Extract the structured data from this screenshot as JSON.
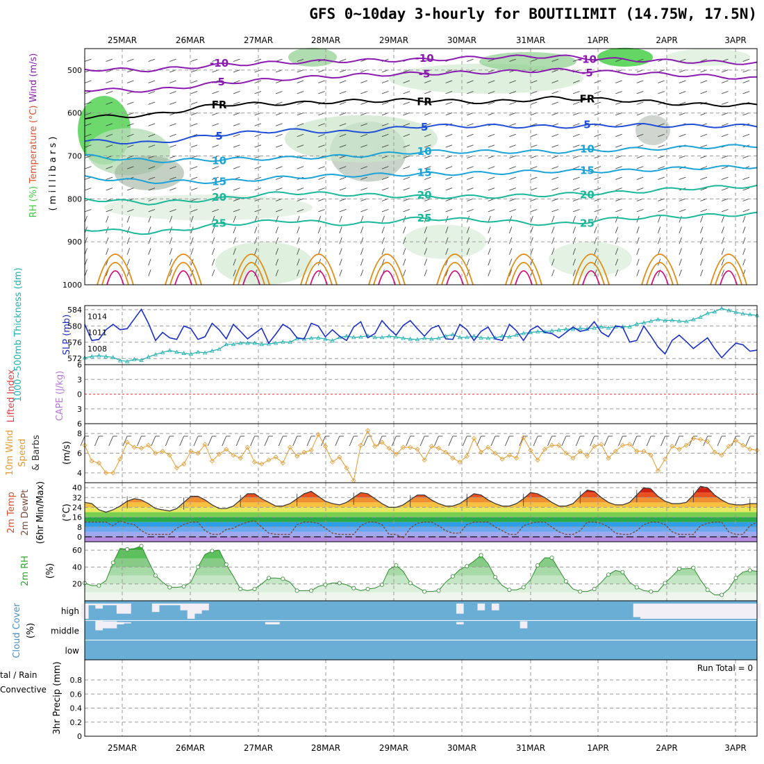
{
  "title": "GFS 0~10day 3-hourly for BOUTILIMIT (14.75W, 17.5N)",
  "colors": {
    "purple": "#8a1ab0",
    "black": "#000000",
    "blue": "#1f4fd8",
    "cyan": "#1aa3d9",
    "teal": "#19b89a",
    "orange": "#e08a10",
    "magenta": "#d0107a",
    "slp": "#1a2fc8",
    "thickness": "#1fb0b0",
    "wind10m": "#e69a2e",
    "rh_fill": "#3ccc3c",
    "cloud": "#6aaed6",
    "cloud_clear": "#f2eef5"
  },
  "chart_data": [
    {
      "id": "upper_air",
      "type": "contour",
      "ylabel_parts": [
        "RH (%)",
        "Temperature (°C)",
        "Wind (m/s)"
      ],
      "ylabel_unit": "( m i l l i b a r s )",
      "pressure_ticks": [
        "500",
        "600",
        "700",
        "800",
        "900",
        "1000"
      ],
      "ylim": [
        450,
        1000
      ],
      "dates": [
        "25MAR",
        "26MAR",
        "27MAR",
        "28MAR",
        "29MAR",
        "30MAR",
        "31MAR",
        "1APR",
        "2APR",
        "3APR"
      ],
      "isotherms": [
        {
          "label": "-10",
          "color_key": "purple",
          "levels": [
            498,
            500,
            488,
            482,
            478,
            476,
            470,
            468,
            476,
            480,
            484
          ]
        },
        {
          "label": "-5",
          "color_key": "purple",
          "levels": [
            545,
            548,
            530,
            520,
            512,
            508,
            505,
            500,
            506,
            512,
            520
          ]
        },
        {
          "label": "FR",
          "color_key": "black",
          "levels": [
            610,
            605,
            580,
            578,
            572,
            570,
            575,
            565,
            570,
            580,
            582
          ]
        },
        {
          "label": "5",
          "color_key": "blue",
          "levels": [
            665,
            670,
            650,
            640,
            645,
            630,
            630,
            632,
            628,
            630,
            630
          ]
        },
        {
          "label": "10",
          "color_key": "cyan",
          "levels": [
            700,
            712,
            708,
            705,
            700,
            690,
            690,
            690,
            685,
            680,
            676
          ]
        },
        {
          "label": "15",
          "color_key": "cyan",
          "levels": [
            750,
            760,
            760,
            750,
            745,
            742,
            740,
            735,
            735,
            728,
            725
          ]
        },
        {
          "label": "20",
          "color_key": "teal",
          "levels": [
            800,
            810,
            800,
            785,
            790,
            795,
            795,
            790,
            785,
            775,
            770
          ]
        },
        {
          "label": "25",
          "color_key": "teal",
          "levels": [
            870,
            880,
            860,
            850,
            860,
            845,
            850,
            860,
            845,
            840,
            835
          ]
        }
      ]
    },
    {
      "id": "slp_thickness",
      "type": "line",
      "ylabel": "1000~500mb Thickness (dm)",
      "ylabel2": "SLP (mb)",
      "left_ticks": [
        "584",
        "580",
        "576",
        "572"
      ],
      "right_ticks": [
        "1014",
        "1011",
        "1008"
      ],
      "series": [
        {
          "name": "SLP (mb)",
          "color_key": "slp",
          "values": [
            1012.5,
            1009.5,
            1009.7,
            1011.5,
            1012.5,
            1011.5,
            1011.7,
            1013.5,
            1015.3,
            1012.7,
            1009.5,
            1011.0,
            1010.0,
            1009.7,
            1012.2,
            1011.7,
            1009.7,
            1010.2,
            1012.7,
            1011.5,
            1009.8,
            1012.5,
            1011.2,
            1009.8,
            1010.8,
            1011.8,
            1009.0,
            1010.7,
            1012.5,
            1011.7,
            1010.0,
            1009.8,
            1012.7,
            1012.2,
            1010.2,
            1011.5,
            1010.3,
            1009.5,
            1012.0,
            1013.0,
            1010.0,
            1010.8,
            1013.2,
            1011.7,
            1010.5,
            1012.3,
            1013.2,
            1011.7,
            1010.3,
            1011.8,
            1012.3,
            1009.8,
            1009.7,
            1012.5,
            1011.5,
            1009.5,
            1011.2,
            1012.0,
            1009.8,
            1009.5,
            1012.5,
            1011.3,
            1009.5,
            1011.5,
            1012.2,
            1011.0,
            1010.8,
            1010.0,
            1011.0,
            1012.0,
            1011.2,
            1011.5,
            1013.0,
            1011.0,
            1010.2,
            1012.2,
            1012.0,
            1009.2,
            1009.5,
            1012.2,
            1010.3,
            1008.3,
            1007.0,
            1009.5,
            1010.5,
            1009.3,
            1008.0,
            1009.0,
            1010.0,
            1008.0,
            1006.3,
            1007.7,
            1009.0,
            1008.7,
            1007.5,
            1007.7
          ]
        },
        {
          "name": "1000~500mb Thickness (dm)",
          "color_key": "thickness",
          "values": [
            572.2,
            572.5,
            572.7,
            572.5,
            572.3,
            571.5,
            571.3,
            571.8,
            571.6,
            572.4,
            573.0,
            573.5,
            574.0,
            573.6,
            573.3,
            573.1,
            573.6,
            573.4,
            573.9,
            574.3,
            575.5,
            575.5,
            575.8,
            575.8,
            575.8,
            575.5,
            575.6,
            575.8,
            576.1,
            576.0,
            576.9,
            576.8,
            577.0,
            577.1,
            576.8,
            576.4,
            577.2,
            577.5,
            577.2,
            577.3,
            577.6,
            577.2,
            577.2,
            577.5,
            577.3,
            577.0,
            576.8,
            576.7,
            577.0,
            576.8,
            577.0,
            577.5,
            577.9,
            577.2,
            577.2,
            577.5,
            577.1,
            577.0,
            577.1,
            577.5,
            577.3,
            577.8,
            578.2,
            578.4,
            578.6,
            578.6,
            578.8,
            579.0,
            579.2,
            579.2,
            579.4,
            579.3,
            579.5,
            579.8,
            579.5,
            579.8,
            579.8,
            579.8,
            580.5,
            580.8,
            581.2,
            581.6,
            581.3,
            581.4,
            581.2,
            581.1,
            581.6,
            582.2,
            583.1,
            583.5,
            584.3,
            583.8,
            583.4,
            583.0,
            582.8,
            582.6
          ]
        }
      ]
    },
    {
      "id": "cape_li",
      "type": "line",
      "ylabel": "Lifted Index",
      "ylabel2": "CAPE (J/kg)",
      "left_ticks": [
        "6",
        "3",
        "0",
        "3",
        "6"
      ],
      "series": [
        {
          "name": "Lifted Index zero line",
          "values": [
            0
          ]
        }
      ]
    },
    {
      "id": "wind10m",
      "type": "line",
      "ylabel": "10m Wind Speed & Barbs (m/s)",
      "ylabel_parts": [
        "10m Wind",
        "Speed",
        "& Barbs",
        "(m/s)"
      ],
      "left_ticks": [
        "8",
        "6",
        "4"
      ],
      "ylim": [
        3,
        9
      ],
      "series": [
        {
          "name": "10m Wind Speed",
          "color_key": "wind10m",
          "values": [
            6.8,
            5.2,
            5.0,
            4.0,
            4.0,
            5.4,
            7.1,
            6.6,
            6.5,
            6.8,
            6.0,
            6.2,
            5.8,
            4.5,
            4.9,
            6.2,
            6.0,
            6.9,
            5.2,
            5.9,
            6.4,
            5.8,
            5.5,
            6.6,
            5.1,
            4.9,
            5.3,
            5.6,
            5.0,
            6.6,
            5.7,
            6.1,
            6.3,
            7.9,
            6.7,
            5.1,
            5.6,
            4.5,
            3.2,
            6.8,
            8.3,
            6.7,
            7.1,
            6.5,
            5.9,
            6.6,
            6.6,
            6.4,
            5.3,
            6.7,
            6.5,
            6.1,
            5.5,
            5.1,
            5.7,
            7.5,
            6.1,
            6.6,
            6.0,
            5.4,
            5.8,
            5.5,
            7.6,
            6.3,
            5.3,
            6.4,
            6.8,
            6.8,
            6.0,
            5.5,
            6.2,
            5.7,
            6.7,
            6.9,
            5.5,
            6.2,
            6.8,
            6.9,
            6.2,
            6.2,
            5.8,
            4.2,
            5.4,
            6.7,
            6.4,
            6.8,
            7.5,
            7.4,
            7.2,
            6.1,
            5.8,
            6.7,
            7.3,
            6.8,
            6.4,
            6.3
          ]
        }
      ]
    },
    {
      "id": "temp_dewpt",
      "type": "area",
      "ylabel_parts": [
        "2m Temp",
        "2m DewPt",
        "(6hr Min/Max)",
        "(°C)"
      ],
      "left_ticks": [
        "40",
        "32",
        "24",
        "16",
        "8",
        "0"
      ],
      "ylim": [
        -4,
        44
      ],
      "temp": [
        28,
        27,
        22,
        20,
        22,
        25,
        29,
        31,
        30,
        27,
        23,
        22,
        21,
        23,
        28,
        33,
        33,
        30,
        26,
        23,
        23,
        25,
        30,
        35,
        35,
        31,
        28,
        25,
        25,
        27,
        31,
        35,
        37,
        33,
        29,
        27,
        26,
        28,
        32,
        36,
        35,
        31,
        27,
        24,
        24,
        26,
        30,
        34,
        34,
        30,
        27,
        25,
        25,
        27,
        31,
        35,
        34,
        30,
        27,
        25,
        25,
        27,
        31,
        36,
        35,
        32,
        28,
        25,
        25,
        27,
        33,
        38,
        37,
        32,
        28,
        26,
        26,
        28,
        34,
        40,
        39,
        33,
        29,
        27,
        27,
        28,
        34,
        41,
        40,
        34,
        30,
        27,
        26,
        26,
        27,
        27
      ],
      "dewpt": [
        12,
        12,
        12,
        12,
        9,
        13,
        11,
        10,
        5,
        2,
        2,
        2,
        2,
        7,
        10,
        12,
        12,
        5,
        2,
        2,
        6,
        7,
        10,
        12,
        13,
        8,
        3,
        2,
        2,
        2,
        10,
        12,
        12,
        11,
        7,
        3,
        2,
        2,
        2,
        9,
        12,
        12,
        10,
        2,
        2,
        -1,
        7,
        11,
        12,
        12,
        9,
        5,
        3,
        3,
        10,
        12,
        12,
        12,
        8,
        5,
        2,
        2,
        9,
        11,
        12,
        12,
        8,
        4,
        2,
        2,
        5,
        12,
        12,
        11,
        8,
        3,
        2,
        2,
        5,
        10,
        12,
        12,
        10,
        4,
        2,
        2,
        2,
        9,
        11,
        12,
        12,
        4,
        2,
        2,
        9,
        12
      ]
    },
    {
      "id": "rh2m",
      "type": "area",
      "ylabel": "2m RH (%)",
      "left_ticks": [
        "60",
        "40",
        "20"
      ],
      "ylim": [
        0,
        70
      ],
      "values": [
        21,
        18,
        18,
        24,
        45,
        62,
        61,
        62,
        65,
        47,
        30,
        22,
        16,
        16,
        17,
        22,
        40,
        55,
        59,
        60,
        43,
        29,
        14,
        12,
        14,
        20,
        27,
        27,
        26,
        22,
        12,
        12,
        12,
        17,
        19,
        21,
        21,
        19,
        15,
        12,
        14,
        15,
        19,
        37,
        42,
        35,
        21,
        16,
        11,
        11,
        12,
        22,
        29,
        37,
        41,
        47,
        54,
        44,
        28,
        18,
        13,
        13,
        16,
        25,
        42,
        51,
        51,
        37,
        23,
        14,
        11,
        11,
        14,
        22,
        31,
        36,
        34,
        22,
        16,
        12,
        11,
        11,
        21,
        29,
        38,
        38,
        39,
        25,
        13,
        7,
        7,
        14,
        27,
        34,
        36,
        35
      ]
    },
    {
      "id": "cloud_cover",
      "type": "bar",
      "ylabel": "Cloud Cover (%)",
      "levels": [
        "high",
        "middle",
        "low"
      ],
      "high": [
        10,
        90,
        70,
        90,
        90,
        40,
        40,
        100,
        100,
        100,
        50,
        90,
        90,
        90,
        60,
        10,
        40,
        60,
        100,
        100,
        100,
        100,
        100,
        100,
        100,
        100,
        100,
        100,
        100,
        100,
        100,
        100,
        100,
        100,
        100,
        100,
        100,
        100,
        100,
        100,
        100,
        100,
        100,
        100,
        100,
        100,
        100,
        100,
        100,
        100,
        100,
        100,
        100,
        40,
        100,
        100,
        60,
        100,
        60,
        100,
        100,
        100,
        100,
        100,
        100,
        100,
        100,
        100,
        100,
        100,
        100,
        100,
        100,
        100,
        100,
        100,
        100,
        100,
        20,
        10,
        10,
        10,
        10,
        10,
        10,
        10,
        10,
        10,
        10,
        10,
        10,
        10,
        10,
        10,
        10,
        10
      ],
      "middle": [
        0,
        0,
        80,
        60,
        60,
        20,
        10,
        0,
        0,
        0,
        0,
        0,
        0,
        0,
        0,
        0,
        0,
        0,
        0,
        0,
        0,
        0,
        0,
        0,
        0,
        0,
        20,
        20,
        0,
        0,
        0,
        0,
        0,
        0,
        0,
        0,
        0,
        0,
        0,
        0,
        0,
        0,
        0,
        0,
        0,
        0,
        0,
        0,
        0,
        0,
        0,
        0,
        0,
        20,
        0,
        0,
        0,
        0,
        0,
        0,
        0,
        0,
        60,
        0,
        0,
        0,
        0,
        0,
        0,
        0,
        0,
        0,
        0,
        0,
        0,
        0,
        0,
        0,
        0,
        0,
        0,
        0,
        0,
        0,
        0,
        0,
        0,
        0,
        0,
        0,
        0,
        0,
        0,
        0,
        0,
        0
      ],
      "low": []
    },
    {
      "id": "precip",
      "type": "bar",
      "ylabel": "3hr Precip (mm)",
      "legend_left": [
        "tal / Rain",
        "Convective"
      ],
      "left_ticks": [
        "0.8",
        "0.6",
        "0.4",
        "0.2",
        "0"
      ],
      "ylim": [
        0,
        1
      ],
      "values": [],
      "run_total_label": "Run Total = 0"
    }
  ]
}
